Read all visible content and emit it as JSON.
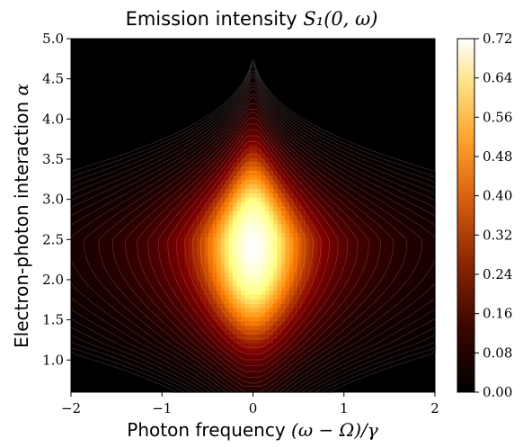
{
  "chart_data": {
    "type": "heatmap",
    "title_prefix": "Emission intensity",
    "title_math": "S₁(0, ω)",
    "xlabel_prefix": "Photon frequency",
    "xlabel_math": "(ω − Ω)/γ",
    "ylabel_prefix": "Electron-photon interaction",
    "ylabel_math": "α",
    "xlim": [
      -2,
      2
    ],
    "ylim": [
      0.6,
      5.0
    ],
    "x_ticks": [
      -2,
      -1,
      0,
      1,
      2
    ],
    "y_ticks": [
      1.0,
      1.5,
      2.0,
      2.5,
      3.0,
      3.5,
      4.0,
      4.5,
      5.0
    ],
    "colorbar": {
      "colormap": "afmhot",
      "range": [
        0.0,
        0.72
      ],
      "ticks": [
        "0.00",
        "0.08",
        "0.16",
        "0.24",
        "0.32",
        "0.40",
        "0.48",
        "0.56",
        "0.64",
        "0.72"
      ]
    },
    "peak": {
      "x": 0.0,
      "alpha": 2.4,
      "value": 0.72
    },
    "contours": "dense contour lines, intensity concentrated near x = 0 between alpha 1.2 and 4.0"
  }
}
